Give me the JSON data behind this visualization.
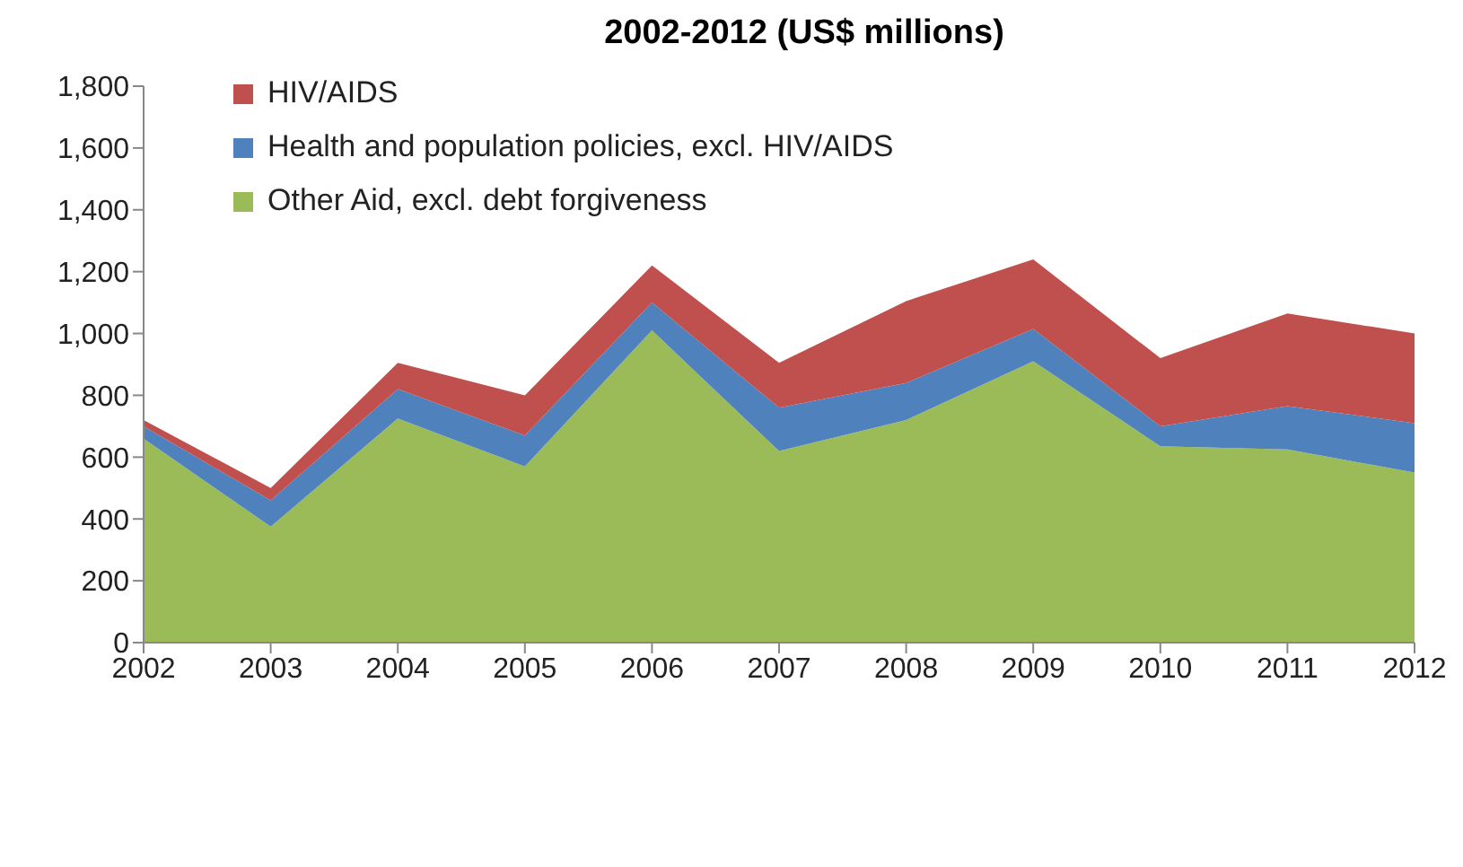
{
  "chart_data": {
    "type": "area",
    "title": "2002-2012 (US$ millions)",
    "stacked": true,
    "x": [
      2002,
      2003,
      2004,
      2005,
      2006,
      2007,
      2008,
      2009,
      2010,
      2011,
      2012
    ],
    "series": [
      {
        "name": "Other Aid, excl. debt forgiveness",
        "color": "#9bbb59",
        "values": [
          660,
          375,
          725,
          570,
          1010,
          620,
          720,
          910,
          635,
          625,
          550
        ]
      },
      {
        "name": "Health and population policies, excl. HIV/AIDS",
        "color": "#4f81bd",
        "values": [
          40,
          85,
          95,
          100,
          90,
          140,
          120,
          105,
          65,
          140,
          160
        ]
      },
      {
        "name": "HIV/AIDS",
        "color": "#c0504d",
        "values": [
          20,
          40,
          85,
          130,
          120,
          145,
          265,
          225,
          220,
          300,
          290
        ]
      }
    ],
    "xlim": [
      2002,
      2012
    ],
    "xticks": [
      2002,
      2003,
      2004,
      2005,
      2006,
      2007,
      2008,
      2009,
      2010,
      2011,
      2012
    ],
    "ylim": [
      0,
      1800
    ],
    "yticks": [
      0,
      200,
      400,
      600,
      800,
      {
        "value": 1000,
        "label": "1,000"
      },
      {
        "value": 1200,
        "label": "1,200"
      },
      {
        "value": 1400,
        "label": "1,400"
      },
      {
        "value": 1600,
        "label": "1,600"
      },
      {
        "value": 1800,
        "label": "1,800"
      }
    ],
    "grid": false,
    "legend": "top left"
  }
}
